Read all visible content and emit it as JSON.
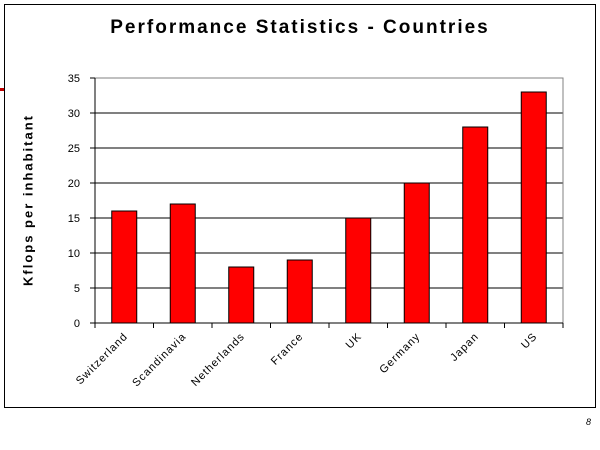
{
  "page": {
    "page_number": "8"
  },
  "chart_data": {
    "type": "bar",
    "title": "Performance Statistics - Countries",
    "xlabel": "",
    "ylabel": "Kflops per inhabitant",
    "categories": [
      "Switzerland",
      "Scandinavia",
      "Netherlands",
      "France",
      "UK",
      "Germany",
      "Japan",
      "US"
    ],
    "values": [
      16,
      17,
      8,
      9,
      15,
      20,
      28,
      33
    ],
    "ylim": [
      0,
      35
    ],
    "yticks": [
      0,
      5,
      10,
      15,
      20,
      25,
      30,
      35
    ],
    "grid": true,
    "legend": "none",
    "colors": {
      "bar_fill": "#ff0000",
      "bar_stroke": "#000000",
      "grid": "#000000",
      "plot_border": "#808080"
    }
  }
}
